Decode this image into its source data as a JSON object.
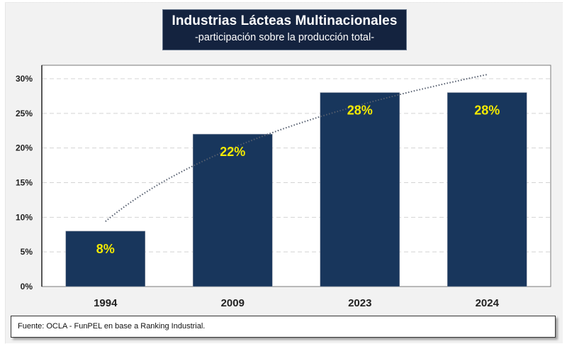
{
  "title": {
    "main": "Industrias Lácteas Multinacionales",
    "subtitle": "-participación sobre la producción total-"
  },
  "source": "Fuente: OCLA - FunPEL en base a Ranking Industrial.",
  "colors": {
    "bar": "#18365c",
    "data_label": "#f5ea00",
    "title_bg": "#14233f",
    "trend": "#555e6e"
  },
  "chart_data": {
    "type": "bar",
    "title": "Industrias Lácteas Multinacionales",
    "subtitle": "-participación sobre la producción total-",
    "categories": [
      "1994",
      "2009",
      "2023",
      "2024"
    ],
    "values": [
      8,
      22,
      28,
      28
    ],
    "data_labels": [
      "8%",
      "22%",
      "28%",
      "28%"
    ],
    "unit": "%",
    "xlabel": "",
    "ylabel": "",
    "ylim": [
      0,
      30
    ],
    "yticks": [
      0,
      5,
      10,
      15,
      20,
      25,
      30
    ],
    "ytick_labels": [
      "0%",
      "5%",
      "10%",
      "15%",
      "20%",
      "25%",
      "30%"
    ],
    "grid": true,
    "legend": "none",
    "trendline": {
      "type": "logarithmic",
      "style": "dotted",
      "start_value": 9.4,
      "end_value": 30.6
    }
  }
}
